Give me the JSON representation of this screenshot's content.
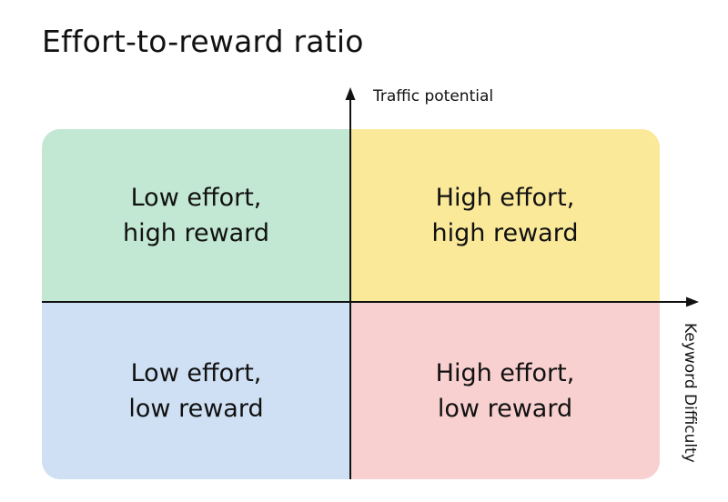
{
  "title": "Effort-to-reward ratio",
  "axes": {
    "y_label": "Traffic potential",
    "x_label": "Keyword Difficulty"
  },
  "quadrants": {
    "top_left": {
      "label": "Low effort,\nhigh reward",
      "color": "#c2e8d3"
    },
    "top_right": {
      "label": "High effort,\nhigh reward",
      "color": "#fbe99a"
    },
    "bottom_left": {
      "label": "Low effort,\nlow reward",
      "color": "#cfe0f4"
    },
    "bottom_right": {
      "label": "High effort,\nlow reward",
      "color": "#f9d0d0"
    }
  },
  "colors": {
    "axis": "#111111",
    "text": "#111111"
  }
}
